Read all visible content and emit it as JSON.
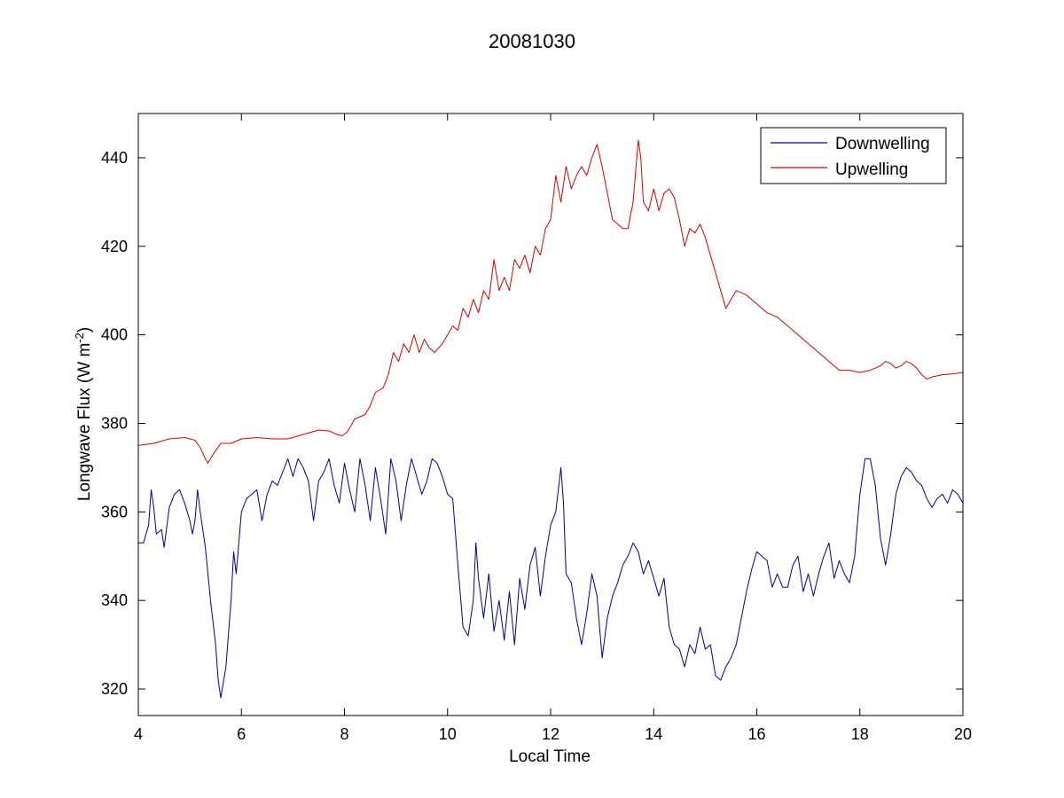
{
  "chart_data": {
    "type": "line",
    "title": "20081030",
    "xlabel": "Local Time",
    "ylabel": "Longwave Flux (W m",
    "ylabel_sup": "-2",
    "ylabel_end": ")",
    "xlim": [
      4,
      20
    ],
    "ylim": [
      314,
      450
    ],
    "xticks": [
      4,
      6,
      8,
      10,
      12,
      14,
      16,
      18,
      20
    ],
    "yticks": [
      320,
      340,
      360,
      380,
      400,
      420,
      440
    ],
    "grid": false,
    "legend_position": "top-right",
    "series": [
      {
        "name": "Downwelling",
        "color": "#00008f",
        "points": [
          [
            4.0,
            353
          ],
          [
            4.1,
            353
          ],
          [
            4.2,
            357
          ],
          [
            4.25,
            365
          ],
          [
            4.3,
            361
          ],
          [
            4.35,
            355
          ],
          [
            4.45,
            356
          ],
          [
            4.5,
            352
          ],
          [
            4.6,
            361
          ],
          [
            4.7,
            364
          ],
          [
            4.8,
            365
          ],
          [
            4.9,
            362
          ],
          [
            5.0,
            358
          ],
          [
            5.05,
            355
          ],
          [
            5.1,
            358
          ],
          [
            5.15,
            365
          ],
          [
            5.2,
            360
          ],
          [
            5.3,
            352
          ],
          [
            5.4,
            340
          ],
          [
            5.5,
            330
          ],
          [
            5.55,
            322
          ],
          [
            5.6,
            318
          ],
          [
            5.7,
            325
          ],
          [
            5.8,
            340
          ],
          [
            5.85,
            351
          ],
          [
            5.9,
            346
          ],
          [
            6.0,
            360
          ],
          [
            6.1,
            363
          ],
          [
            6.2,
            364
          ],
          [
            6.3,
            365
          ],
          [
            6.4,
            358
          ],
          [
            6.5,
            364
          ],
          [
            6.6,
            367
          ],
          [
            6.7,
            366
          ],
          [
            6.8,
            369
          ],
          [
            6.9,
            372
          ],
          [
            7.0,
            368
          ],
          [
            7.1,
            372
          ],
          [
            7.2,
            370
          ],
          [
            7.3,
            367
          ],
          [
            7.4,
            358
          ],
          [
            7.5,
            367
          ],
          [
            7.6,
            369
          ],
          [
            7.7,
            372
          ],
          [
            7.8,
            366
          ],
          [
            7.9,
            362
          ],
          [
            8.0,
            371
          ],
          [
            8.1,
            365
          ],
          [
            8.2,
            360
          ],
          [
            8.3,
            372
          ],
          [
            8.4,
            366
          ],
          [
            8.5,
            358
          ],
          [
            8.6,
            370
          ],
          [
            8.7,
            363
          ],
          [
            8.8,
            355
          ],
          [
            8.9,
            372
          ],
          [
            9.0,
            367
          ],
          [
            9.1,
            358
          ],
          [
            9.2,
            366
          ],
          [
            9.3,
            372
          ],
          [
            9.4,
            368
          ],
          [
            9.5,
            364
          ],
          [
            9.6,
            367
          ],
          [
            9.7,
            372
          ],
          [
            9.8,
            371
          ],
          [
            9.9,
            368
          ],
          [
            10.0,
            364
          ],
          [
            10.1,
            363
          ],
          [
            10.2,
            348
          ],
          [
            10.3,
            334
          ],
          [
            10.4,
            332
          ],
          [
            10.5,
            340
          ],
          [
            10.55,
            353
          ],
          [
            10.6,
            345
          ],
          [
            10.7,
            336
          ],
          [
            10.8,
            346
          ],
          [
            10.9,
            333
          ],
          [
            11.0,
            340
          ],
          [
            11.1,
            331
          ],
          [
            11.2,
            342
          ],
          [
            11.3,
            330
          ],
          [
            11.4,
            345
          ],
          [
            11.5,
            338
          ],
          [
            11.6,
            348
          ],
          [
            11.7,
            352
          ],
          [
            11.8,
            341
          ],
          [
            11.9,
            350
          ],
          [
            12.0,
            357
          ],
          [
            12.1,
            360
          ],
          [
            12.2,
            370
          ],
          [
            12.25,
            362
          ],
          [
            12.3,
            346
          ],
          [
            12.4,
            344
          ],
          [
            12.5,
            336
          ],
          [
            12.6,
            330
          ],
          [
            12.7,
            337
          ],
          [
            12.8,
            346
          ],
          [
            12.9,
            341
          ],
          [
            13.0,
            327
          ],
          [
            13.1,
            336
          ],
          [
            13.2,
            341
          ],
          [
            13.3,
            344
          ],
          [
            13.4,
            348
          ],
          [
            13.5,
            350
          ],
          [
            13.6,
            353
          ],
          [
            13.7,
            351
          ],
          [
            13.8,
            346
          ],
          [
            13.9,
            349
          ],
          [
            14.0,
            345
          ],
          [
            14.1,
            341
          ],
          [
            14.2,
            345
          ],
          [
            14.3,
            334
          ],
          [
            14.4,
            330
          ],
          [
            14.5,
            329
          ],
          [
            14.6,
            325
          ],
          [
            14.7,
            330
          ],
          [
            14.8,
            328
          ],
          [
            14.9,
            334
          ],
          [
            15.0,
            329
          ],
          [
            15.1,
            330
          ],
          [
            15.2,
            323
          ],
          [
            15.3,
            322
          ],
          [
            15.4,
            325
          ],
          [
            15.5,
            327
          ],
          [
            15.6,
            330
          ],
          [
            15.7,
            336
          ],
          [
            15.8,
            342
          ],
          [
            15.9,
            347
          ],
          [
            16.0,
            351
          ],
          [
            16.1,
            350
          ],
          [
            16.2,
            349
          ],
          [
            16.3,
            343
          ],
          [
            16.4,
            346
          ],
          [
            16.5,
            343
          ],
          [
            16.6,
            343
          ],
          [
            16.7,
            348
          ],
          [
            16.8,
            350
          ],
          [
            16.9,
            342
          ],
          [
            17.0,
            346
          ],
          [
            17.1,
            341
          ],
          [
            17.2,
            346
          ],
          [
            17.3,
            350
          ],
          [
            17.4,
            353
          ],
          [
            17.5,
            345
          ],
          [
            17.6,
            349
          ],
          [
            17.7,
            346
          ],
          [
            17.8,
            344
          ],
          [
            17.9,
            350
          ],
          [
            18.0,
            364
          ],
          [
            18.1,
            372
          ],
          [
            18.2,
            372
          ],
          [
            18.3,
            366
          ],
          [
            18.4,
            354
          ],
          [
            18.5,
            348
          ],
          [
            18.6,
            355
          ],
          [
            18.7,
            364
          ],
          [
            18.8,
            368
          ],
          [
            18.9,
            370
          ],
          [
            19.0,
            369
          ],
          [
            19.1,
            367
          ],
          [
            19.2,
            366
          ],
          [
            19.3,
            363
          ],
          [
            19.4,
            361
          ],
          [
            19.5,
            363
          ],
          [
            19.6,
            364
          ],
          [
            19.7,
            362
          ],
          [
            19.8,
            365
          ],
          [
            19.9,
            364
          ],
          [
            20.0,
            362
          ]
        ]
      },
      {
        "name": "Upwelling",
        "color": "#d40000",
        "points": [
          [
            4.0,
            375
          ],
          [
            4.3,
            375.5
          ],
          [
            4.6,
            376.5
          ],
          [
            4.9,
            376.8
          ],
          [
            5.1,
            376.2
          ],
          [
            5.2,
            374.5
          ],
          [
            5.3,
            372
          ],
          [
            5.35,
            371
          ],
          [
            5.45,
            373
          ],
          [
            5.6,
            375.5
          ],
          [
            5.8,
            375.5
          ],
          [
            6.0,
            376.5
          ],
          [
            6.3,
            376.8
          ],
          [
            6.6,
            376.5
          ],
          [
            6.9,
            376.5
          ],
          [
            7.2,
            377.5
          ],
          [
            7.5,
            378.5
          ],
          [
            7.7,
            378.3
          ],
          [
            7.85,
            377.5
          ],
          [
            7.95,
            377.2
          ],
          [
            8.05,
            378
          ],
          [
            8.2,
            381
          ],
          [
            8.4,
            382
          ],
          [
            8.5,
            384
          ],
          [
            8.6,
            387
          ],
          [
            8.75,
            388
          ],
          [
            8.85,
            391
          ],
          [
            8.95,
            396
          ],
          [
            9.05,
            394
          ],
          [
            9.15,
            398
          ],
          [
            9.25,
            396
          ],
          [
            9.35,
            400
          ],
          [
            9.45,
            396
          ],
          [
            9.55,
            399
          ],
          [
            9.65,
            397
          ],
          [
            9.75,
            396
          ],
          [
            9.9,
            398
          ],
          [
            10.0,
            400
          ],
          [
            10.1,
            402
          ],
          [
            10.2,
            401
          ],
          [
            10.3,
            406
          ],
          [
            10.4,
            404
          ],
          [
            10.5,
            408
          ],
          [
            10.6,
            405
          ],
          [
            10.7,
            410
          ],
          [
            10.8,
            408
          ],
          [
            10.9,
            417
          ],
          [
            11.0,
            410
          ],
          [
            11.1,
            413
          ],
          [
            11.2,
            410
          ],
          [
            11.3,
            417
          ],
          [
            11.4,
            415
          ],
          [
            11.5,
            418
          ],
          [
            11.6,
            414
          ],
          [
            11.7,
            420
          ],
          [
            11.8,
            418
          ],
          [
            11.9,
            424
          ],
          [
            12.0,
            426
          ],
          [
            12.1,
            436
          ],
          [
            12.2,
            430
          ],
          [
            12.3,
            438
          ],
          [
            12.4,
            433
          ],
          [
            12.5,
            436
          ],
          [
            12.6,
            438
          ],
          [
            12.7,
            436
          ],
          [
            12.8,
            440
          ],
          [
            12.9,
            443
          ],
          [
            13.0,
            438
          ],
          [
            13.1,
            432
          ],
          [
            13.2,
            426
          ],
          [
            13.3,
            425
          ],
          [
            13.4,
            424
          ],
          [
            13.5,
            424
          ],
          [
            13.6,
            430
          ],
          [
            13.7,
            444
          ],
          [
            13.75,
            440
          ],
          [
            13.8,
            430
          ],
          [
            13.9,
            428
          ],
          [
            14.0,
            433
          ],
          [
            14.1,
            428
          ],
          [
            14.2,
            432
          ],
          [
            14.3,
            433
          ],
          [
            14.4,
            431
          ],
          [
            14.5,
            426
          ],
          [
            14.6,
            420
          ],
          [
            14.7,
            424
          ],
          [
            14.8,
            423
          ],
          [
            14.9,
            425
          ],
          [
            15.0,
            422
          ],
          [
            15.1,
            418
          ],
          [
            15.2,
            414
          ],
          [
            15.3,
            410
          ],
          [
            15.4,
            406
          ],
          [
            15.5,
            408
          ],
          [
            15.6,
            410
          ],
          [
            15.8,
            409
          ],
          [
            16.0,
            407
          ],
          [
            16.2,
            405
          ],
          [
            16.4,
            404
          ],
          [
            16.6,
            402
          ],
          [
            16.8,
            400
          ],
          [
            17.0,
            398
          ],
          [
            17.2,
            396
          ],
          [
            17.4,
            394
          ],
          [
            17.6,
            392
          ],
          [
            17.8,
            392
          ],
          [
            18.0,
            391.5
          ],
          [
            18.2,
            392
          ],
          [
            18.4,
            393
          ],
          [
            18.5,
            394
          ],
          [
            18.6,
            393.5
          ],
          [
            18.7,
            392.5
          ],
          [
            18.8,
            393
          ],
          [
            18.9,
            394
          ],
          [
            19.0,
            393.5
          ],
          [
            19.1,
            392.5
          ],
          [
            19.2,
            391
          ],
          [
            19.3,
            390
          ],
          [
            19.4,
            390.5
          ],
          [
            19.6,
            391
          ],
          [
            19.8,
            391.2
          ],
          [
            20.0,
            391.5
          ]
        ]
      }
    ]
  }
}
